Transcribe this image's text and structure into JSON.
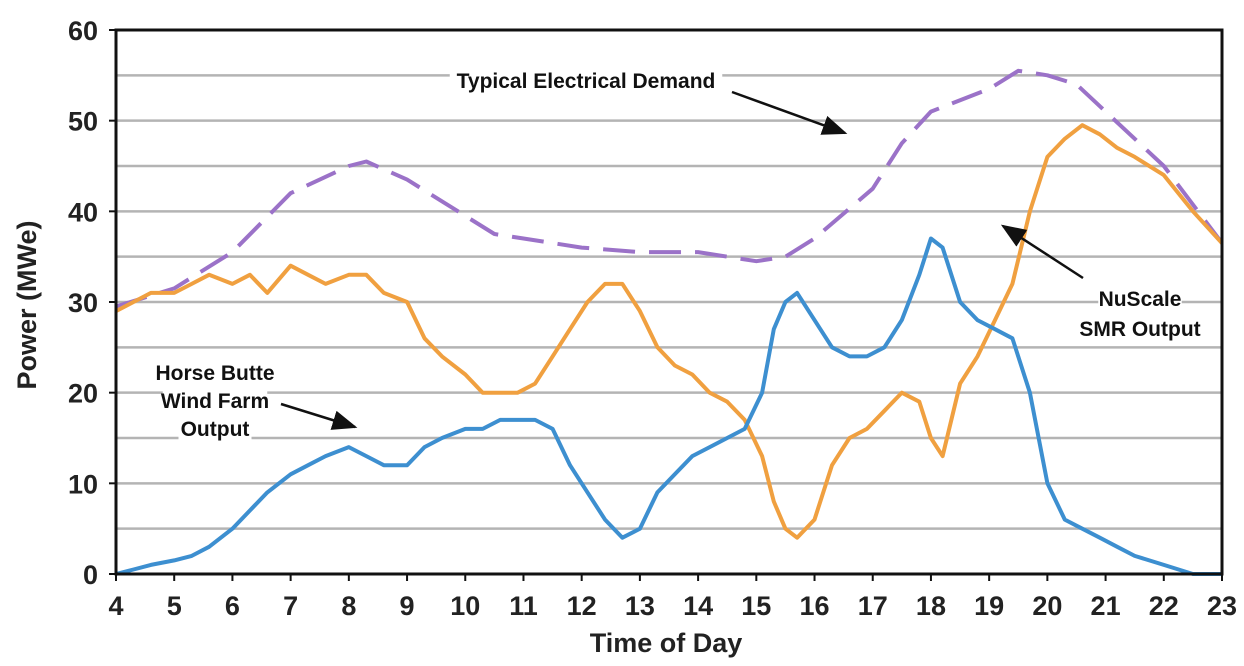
{
  "chart_data": {
    "type": "line",
    "xlabel": "Time of Day",
    "ylabel": "Power (MWe)",
    "xlim": [
      4,
      23
    ],
    "ylim": [
      0,
      60
    ],
    "x_ticks": [
      4,
      5,
      6,
      7,
      8,
      9,
      10,
      11,
      12,
      13,
      14,
      15,
      16,
      17,
      18,
      19,
      20,
      21,
      22,
      23
    ],
    "y_ticks": [
      0,
      10,
      20,
      30,
      40,
      50,
      60
    ],
    "grid": true,
    "legend": "none",
    "annotations": [
      {
        "id": "demand",
        "lines": [
          "Typical Electrical Demand"
        ]
      },
      {
        "id": "nuscale",
        "lines": [
          "NuScale",
          "SMR Output"
        ]
      },
      {
        "id": "wind",
        "lines": [
          "Horse Butte",
          "Wind Farm",
          "Output"
        ]
      }
    ],
    "series": [
      {
        "name": "Typical Electrical Demand",
        "color": "#9b72c8",
        "style": "dashed",
        "x": [
          4,
          5,
          6,
          7,
          8,
          8.3,
          9,
          10,
          10.5,
          11,
          12,
          13,
          14,
          15,
          15.5,
          16,
          17,
          17.5,
          18,
          19,
          19.5,
          20,
          20.5,
          21,
          22,
          23
        ],
        "y": [
          29.5,
          31.5,
          35.5,
          42,
          45,
          45.5,
          43.5,
          39.5,
          37.5,
          37,
          36,
          35.5,
          35.5,
          34.5,
          35,
          37,
          42.5,
          47.5,
          51,
          53.5,
          55.5,
          55,
          54,
          51,
          45,
          36.5
        ]
      },
      {
        "name": "NuScale SMR Output",
        "color": "#f0a040",
        "style": "solid",
        "x": [
          4,
          4.3,
          4.6,
          5,
          5.3,
          5.6,
          6,
          6.3,
          6.6,
          7,
          7.3,
          7.6,
          8,
          8.3,
          8.6,
          9,
          9.3,
          9.6,
          10,
          10.3,
          10.6,
          10.9,
          11.2,
          11.5,
          11.8,
          12.1,
          12.4,
          12.7,
          13,
          13.3,
          13.6,
          13.9,
          14.2,
          14.5,
          14.8,
          15.1,
          15.3,
          15.5,
          15.7,
          16,
          16.3,
          16.6,
          16.9,
          17.2,
          17.5,
          17.8,
          18,
          18.2,
          18.5,
          18.8,
          19.1,
          19.4,
          19.7,
          20,
          20.3,
          20.6,
          20.9,
          21.2,
          21.5,
          22,
          22.5,
          23
        ],
        "y": [
          29,
          30,
          31,
          31,
          32,
          33,
          32,
          33,
          31,
          34,
          33,
          32,
          33,
          33,
          31,
          30,
          26,
          24,
          22,
          20,
          20,
          20,
          21,
          24,
          27,
          30,
          32,
          32,
          29,
          25,
          23,
          22,
          20,
          19,
          17,
          13,
          8,
          5,
          4,
          6,
          12,
          15,
          16,
          18,
          20,
          19,
          15,
          13,
          21,
          24,
          28,
          32,
          40,
          46,
          48,
          49.5,
          48.5,
          47,
          46,
          44,
          40,
          36.5
        ]
      },
      {
        "name": "Horse Butte Wind Farm Output",
        "color": "#3d8fd0",
        "style": "solid",
        "x": [
          4,
          4.3,
          4.6,
          5,
          5.3,
          5.6,
          6,
          6.3,
          6.6,
          7,
          7.3,
          7.6,
          8,
          8.3,
          8.6,
          9,
          9.3,
          9.6,
          10,
          10.3,
          10.6,
          10.9,
          11.2,
          11.5,
          11.8,
          12.1,
          12.4,
          12.7,
          13,
          13.3,
          13.6,
          13.9,
          14.2,
          14.5,
          14.8,
          15.1,
          15.3,
          15.5,
          15.7,
          16,
          16.3,
          16.6,
          16.9,
          17.2,
          17.5,
          17.8,
          18,
          18.2,
          18.5,
          18.8,
          19.1,
          19.4,
          19.7,
          20,
          20.3,
          20.6,
          20.9,
          21.2,
          21.5,
          22,
          22.5,
          23
        ],
        "y": [
          0,
          0.5,
          1,
          1.5,
          2,
          3,
          5,
          7,
          9,
          11,
          12,
          13,
          14,
          13,
          12,
          12,
          14,
          15,
          16,
          16,
          17,
          17,
          17,
          16,
          12,
          9,
          6,
          4,
          5,
          9,
          11,
          13,
          14,
          15,
          16,
          20,
          27,
          30,
          31,
          28,
          25,
          24,
          24,
          25,
          28,
          33,
          37,
          36,
          30,
          28,
          27,
          26,
          20,
          10,
          6,
          5,
          4,
          3,
          2,
          1,
          0,
          0
        ]
      }
    ]
  }
}
